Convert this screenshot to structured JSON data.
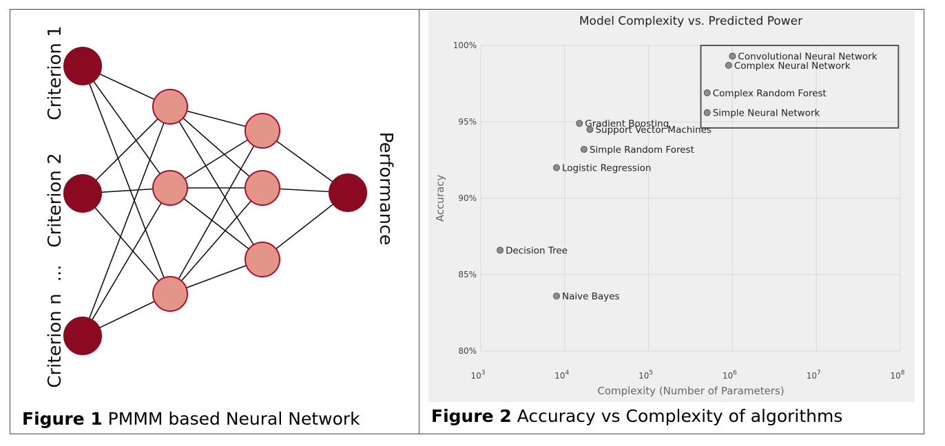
{
  "figure1": {
    "caption_bold": "Figure 1",
    "caption_text": " PMMM based Neural Network",
    "inputs": [
      "Criterion 1",
      "Criterion 2",
      "...",
      "Criterion n"
    ],
    "output": "Performance",
    "colors": {
      "input_output": "#8b0a22",
      "hidden": "#e3958a",
      "hidden_stroke": "#a8102a",
      "edge": "#111111"
    }
  },
  "figure2": {
    "caption_bold": "Figure 2",
    "caption_text": " Accuracy vs Complexity of algorithms"
  },
  "chart_data": {
    "type": "scatter",
    "title": "Model Complexity vs. Predicted Power",
    "xlabel": "Complexity (Number of Parameters)",
    "ylabel": "Accuracy",
    "x_scale": "log",
    "xlim": [
      1000,
      100000000
    ],
    "ylim": [
      80,
      100
    ],
    "x_ticks": [
      {
        "value": 1000,
        "base": "10",
        "exp": "3"
      },
      {
        "value": 10000,
        "base": "10",
        "exp": "4"
      },
      {
        "value": 100000,
        "base": "10",
        "exp": "5"
      },
      {
        "value": 1000000,
        "base": "10",
        "exp": "6"
      },
      {
        "value": 10000000,
        "base": "10",
        "exp": "7"
      },
      {
        "value": 100000000,
        "base": "10",
        "exp": "8"
      }
    ],
    "y_ticks": [
      {
        "value": 80,
        "label": "80%"
      },
      {
        "value": 85,
        "label": "85%"
      },
      {
        "value": 90,
        "label": "90%"
      },
      {
        "value": 95,
        "label": "95%"
      },
      {
        "value": 100,
        "label": "100%"
      }
    ],
    "grid": true,
    "points": [
      {
        "name": "Convolutional Neural Network",
        "x": 1000000,
        "y": 99.3
      },
      {
        "name": "Complex Neural Network",
        "x": 900000,
        "y": 98.7
      },
      {
        "name": "Complex Random Forest",
        "x": 500000,
        "y": 96.9
      },
      {
        "name": "Simple Neural Network",
        "x": 500000,
        "y": 95.6
      },
      {
        "name": "Gradient Boosting",
        "x": 15000,
        "y": 94.9
      },
      {
        "name": "Support Vector Machines",
        "x": 20000,
        "y": 94.5
      },
      {
        "name": "Simple Random Forest",
        "x": 17000,
        "y": 93.2
      },
      {
        "name": "Logistic Regression",
        "x": 8000,
        "y": 92.0
      },
      {
        "name": "Decision Tree",
        "x": 1700,
        "y": 86.6
      },
      {
        "name": "Naive Bayes",
        "x": 8000,
        "y": 83.6
      }
    ],
    "highlight_box": {
      "x_range": [
        420000,
        95000000
      ],
      "y_range": [
        94.6,
        100
      ]
    },
    "colors": {
      "background": "#efefef",
      "grid": "#d9d9d9",
      "marker": "#8c8c8c",
      "marker_edge": "#555555",
      "box": "#555555"
    }
  }
}
